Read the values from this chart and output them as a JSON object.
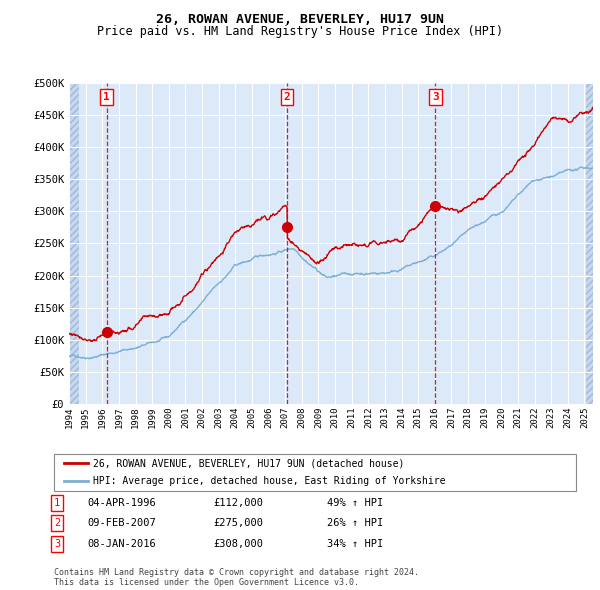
{
  "title": "26, ROWAN AVENUE, BEVERLEY, HU17 9UN",
  "subtitle": "Price paid vs. HM Land Registry's House Price Index (HPI)",
  "xlim": [
    1994.0,
    2025.5
  ],
  "ylim": [
    0,
    500000
  ],
  "yticks": [
    0,
    50000,
    100000,
    150000,
    200000,
    250000,
    300000,
    350000,
    400000,
    450000,
    500000
  ],
  "ytick_labels": [
    "£0",
    "£50K",
    "£100K",
    "£150K",
    "£200K",
    "£250K",
    "£300K",
    "£350K",
    "£400K",
    "£450K",
    "£500K"
  ],
  "sale_dates": [
    1996.26,
    2007.11,
    2016.03
  ],
  "sale_prices": [
    112000,
    275000,
    308000
  ],
  "sale_labels": [
    "1",
    "2",
    "3"
  ],
  "legend_line1": "26, ROWAN AVENUE, BEVERLEY, HU17 9UN (detached house)",
  "legend_line2": "HPI: Average price, detached house, East Riding of Yorkshire",
  "table_rows": [
    [
      "1",
      "04-APR-1996",
      "£112,000",
      "49% ↑ HPI"
    ],
    [
      "2",
      "09-FEB-2007",
      "£275,000",
      "26% ↑ HPI"
    ],
    [
      "3",
      "08-JAN-2016",
      "£308,000",
      "34% ↑ HPI"
    ]
  ],
  "footer": "Contains HM Land Registry data © Crown copyright and database right 2024.\nThis data is licensed under the Open Government Licence v3.0.",
  "bg_color": "#dce9f8",
  "red_line_color": "#cc0000",
  "blue_line_color": "#7bafd4",
  "dashed_line_color": "#cc0000",
  "marker_color": "#cc0000",
  "title_fontsize": 9.5,
  "subtitle_fontsize": 8.5,
  "tick_fontsize": 7.5
}
